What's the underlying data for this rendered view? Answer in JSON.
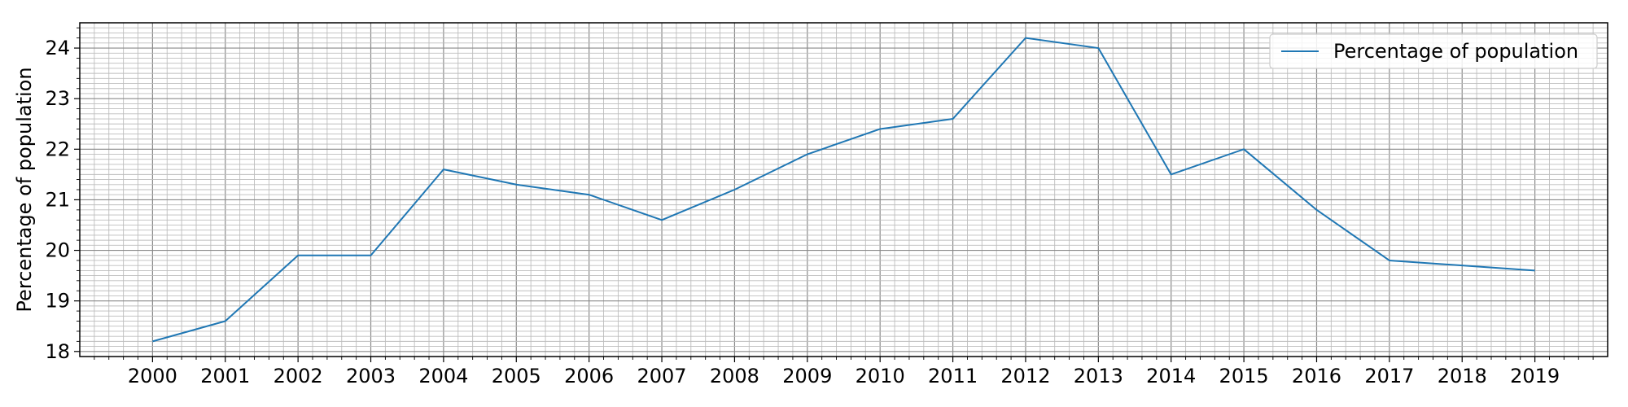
{
  "chart_data": {
    "type": "line",
    "title": "",
    "xlabel": "",
    "ylabel": "Percentage of population",
    "x": [
      "2000",
      "2001",
      "2002",
      "2003",
      "2004",
      "2005",
      "2006",
      "2007",
      "2008",
      "2009",
      "2010",
      "2011",
      "2012",
      "2013",
      "2014",
      "2015",
      "2016",
      "2017",
      "2018",
      "2019"
    ],
    "series": [
      {
        "name": "Percentage of population",
        "values": [
          18.2,
          18.6,
          19.9,
          19.9,
          21.6,
          21.3,
          21.1,
          20.6,
          21.2,
          21.9,
          22.4,
          22.6,
          24.2,
          24.0,
          21.5,
          22.0,
          20.8,
          19.8,
          19.7,
          19.6
        ],
        "color": "#1f77b4"
      }
    ],
    "ylim": [
      17.9,
      24.5
    ],
    "yticks": [
      18,
      19,
      20,
      21,
      22,
      23,
      24
    ],
    "grid": "major-and-minor",
    "legend_position": "top-right"
  }
}
